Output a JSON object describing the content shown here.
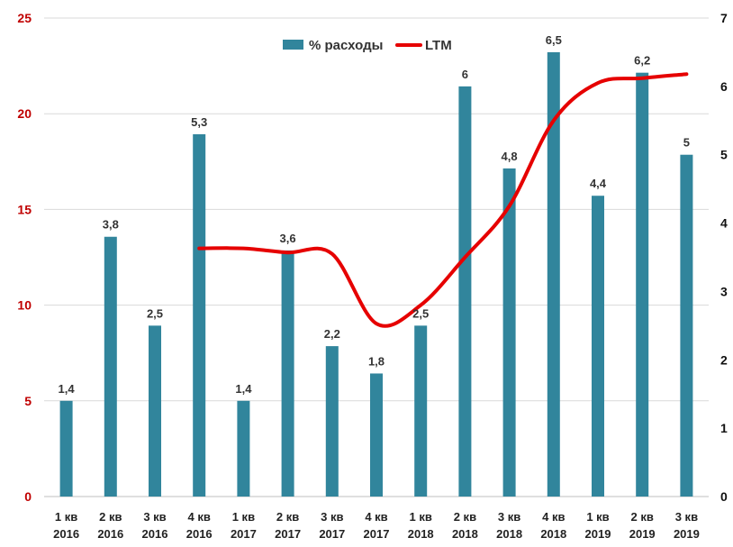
{
  "chart_data": {
    "type": "bar",
    "categories": [
      [
        "1 кв",
        "2016"
      ],
      [
        "2 кв",
        "2016"
      ],
      [
        "3 кв",
        "2016"
      ],
      [
        "4 кв",
        "2016"
      ],
      [
        "1 кв",
        "2017"
      ],
      [
        "2 кв",
        "2017"
      ],
      [
        "3 кв",
        "2017"
      ],
      [
        "4 кв",
        "2017"
      ],
      [
        "1 кв",
        "2018"
      ],
      [
        "2 кв",
        "2018"
      ],
      [
        "3 кв",
        "2018"
      ],
      [
        "4 кв",
        "2018"
      ],
      [
        "1 кв",
        "2019"
      ],
      [
        "2 кв",
        "2019"
      ],
      [
        "3 кв",
        "2019"
      ]
    ],
    "series": [
      {
        "name": "% расходы",
        "kind": "bar",
        "axis": "right",
        "color": "#31859C",
        "values": [
          1.4,
          3.8,
          2.5,
          5.3,
          1.4,
          3.6,
          2.2,
          1.8,
          2.5,
          6,
          4.8,
          6.5,
          4.4,
          6.2,
          5
        ],
        "labels": [
          "1,4",
          "3,8",
          "2,5",
          "5,3",
          "1,4",
          "3,6",
          "2,2",
          "1,8",
          "2,5",
          "6",
          "4,8",
          "6,5",
          "4,4",
          "6,2",
          "5"
        ]
      },
      {
        "name": "LTM",
        "kind": "line",
        "axis": "right",
        "smooth": true,
        "color": "#E60000",
        "values": [
          null,
          null,
          null,
          3.63,
          3.63,
          3.57,
          3.55,
          2.53,
          2.8,
          3.5,
          4.25,
          5.5,
          6.05,
          6.12,
          6.18
        ]
      }
    ],
    "y_left": {
      "ticks": [
        "0",
        "5",
        "10",
        "15",
        "20",
        "25"
      ],
      "tick_values": [
        0,
        5,
        10,
        15,
        20,
        25
      ],
      "range": [
        0,
        25
      ],
      "color": "#C00000"
    },
    "y_right": {
      "ticks": [
        "0",
        "1",
        "2",
        "3",
        "4",
        "5",
        "6",
        "7"
      ],
      "tick_values": [
        0,
        1,
        2,
        3,
        4,
        5,
        6,
        7
      ],
      "range": [
        0,
        7
      ]
    },
    "grid": true,
    "legend_position": "top-center",
    "title": "",
    "xlabel": "",
    "ylabel": ""
  }
}
